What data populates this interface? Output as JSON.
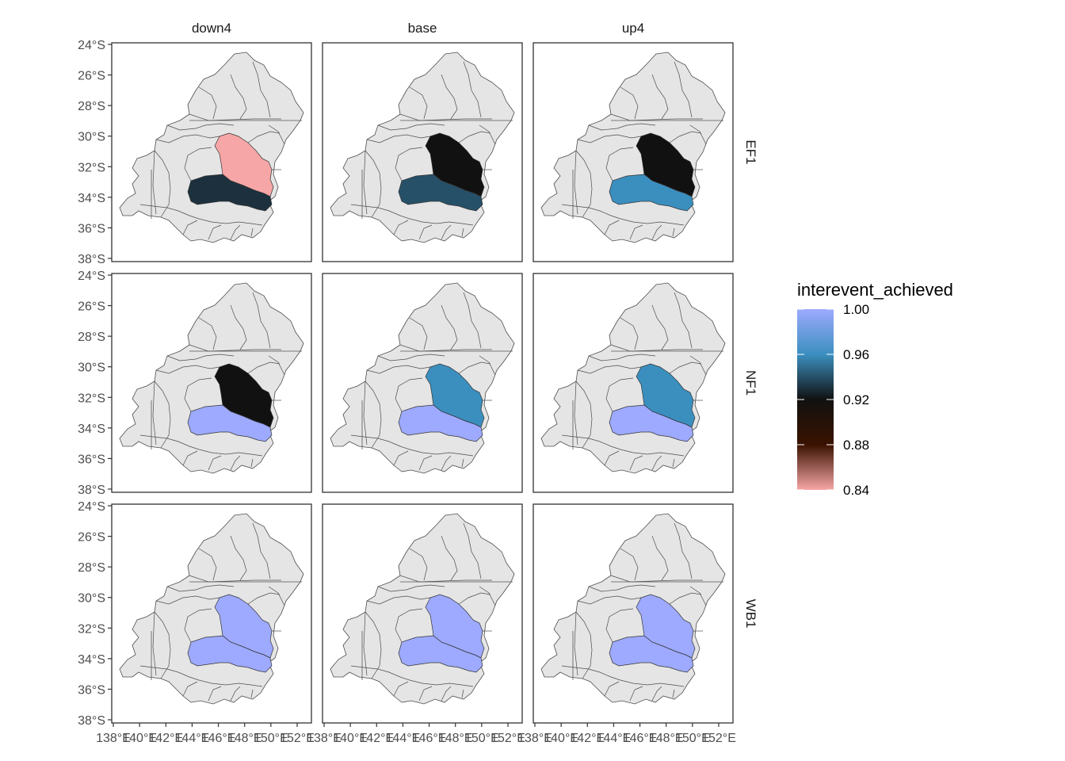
{
  "facets": {
    "columns": [
      "down4",
      "base",
      "up4"
    ],
    "rows": [
      "EF1",
      "NF1",
      "WB1"
    ]
  },
  "axes": {
    "y_ticks": [
      "24°S",
      "26°S",
      "28°S",
      "30°S",
      "32°S",
      "34°S",
      "36°S",
      "38°S"
    ],
    "x_ticks": [
      "138°E",
      "140°E",
      "142°E",
      "144°E",
      "146°E",
      "148°E",
      "150°E",
      "152°E"
    ],
    "x_tick_labels_rendered": [
      "138°E",
      "140°E",
      "142°E",
      "144°E",
      "146°E",
      "148°E",
      "150°E",
      "152°E"
    ]
  },
  "legend": {
    "title": "interevent_achieved",
    "breaks": [
      "1.00",
      "0.96",
      "0.92",
      "0.88",
      "0.84"
    ],
    "break_values": [
      1.0,
      0.96,
      0.92,
      0.88,
      0.84
    ],
    "limits": [
      0.84,
      1.0
    ],
    "gradient_colors": [
      "#9DAAFF",
      "#3B8FBF",
      "#111111",
      "#3A1200",
      "#F6A6A6"
    ]
  },
  "colors": {
    "base_region": "#E5E5E5",
    "region_outline": "#4d4d4d",
    "panel_border": "#333333"
  },
  "map_values": {
    "EF1": {
      "down4": {
        "north_catchment": 0.84,
        "south_catchment": 0.93
      },
      "base": {
        "north_catchment": 0.92,
        "south_catchment": 0.94
      },
      "up4": {
        "north_catchment": 0.92,
        "south_catchment": 0.96
      }
    },
    "NF1": {
      "down4": {
        "north_catchment": 0.92,
        "south_catchment": 1.0
      },
      "base": {
        "north_catchment": 0.96,
        "south_catchment": 1.0
      },
      "up4": {
        "north_catchment": 0.96,
        "south_catchment": 1.0
      }
    },
    "WB1": {
      "down4": {
        "north_catchment": 1.0,
        "south_catchment": 1.0
      },
      "base": {
        "north_catchment": 1.0,
        "south_catchment": 1.0
      },
      "up4": {
        "north_catchment": 1.0,
        "south_catchment": 1.0
      }
    }
  }
}
